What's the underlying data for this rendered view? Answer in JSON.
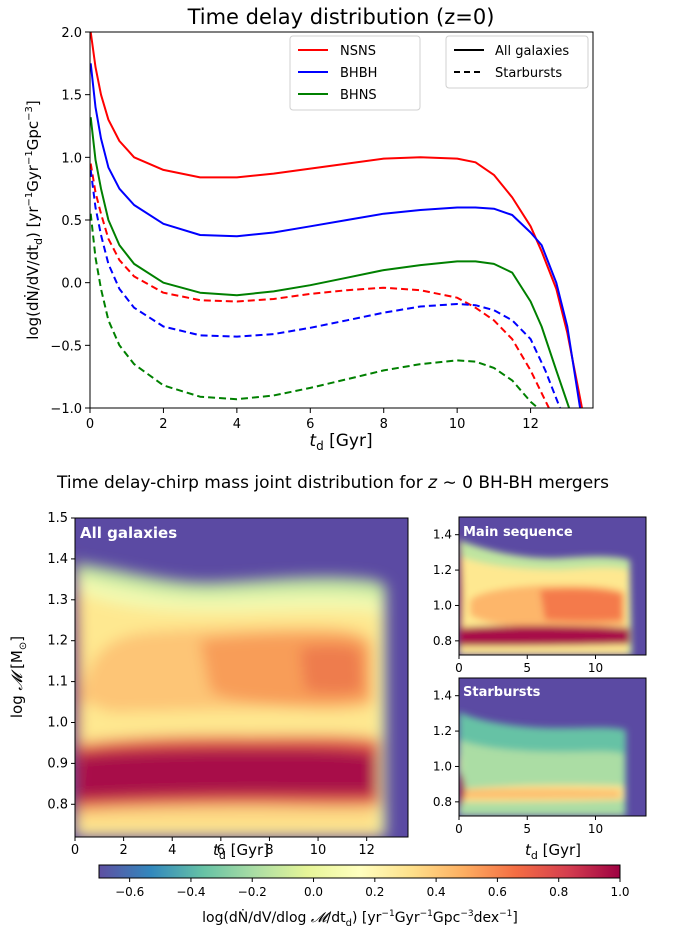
{
  "chart_data": [
    {
      "type": "line",
      "title": "Time delay distribution (z=0)",
      "xlabel": "t_d [Gyr]",
      "ylabel": "log(dṄ/dV/dt_d) [yr⁻¹Gyr⁻¹Gpc⁻³]",
      "xlim": [
        0,
        13.7
      ],
      "ylim": [
        -1.0,
        2.0
      ],
      "xticks": [
        0,
        2,
        4,
        6,
        8,
        10,
        12
      ],
      "yticks": [
        -1.0,
        -0.5,
        0.0,
        0.5,
        1.0,
        1.5,
        2.0
      ],
      "grid": false,
      "legend": {
        "placement": "top-right",
        "colors": [
          "NSNS",
          "BHBH",
          "BHNS"
        ],
        "linestyles": [
          "All galaxies",
          "Starbursts"
        ]
      },
      "series": [
        {
          "name": "NSNS",
          "linestyle": "All galaxies",
          "color": "#ff0000",
          "x": [
            0.02,
            0.15,
            0.3,
            0.5,
            0.8,
            1.2,
            2.0,
            3.0,
            4.0,
            5.0,
            6.0,
            7.0,
            8.0,
            9.0,
            10.0,
            10.5,
            11.0,
            11.5,
            12.0,
            12.3,
            12.7,
            13.0,
            13.4
          ],
          "y": [
            2.0,
            1.72,
            1.5,
            1.3,
            1.13,
            1.0,
            0.9,
            0.84,
            0.84,
            0.87,
            0.91,
            0.95,
            0.99,
            1.0,
            0.99,
            0.96,
            0.86,
            0.68,
            0.45,
            0.25,
            -0.05,
            -0.4,
            -1.0
          ]
        },
        {
          "name": "BHBH",
          "linestyle": "All galaxies",
          "color": "#0000ff",
          "x": [
            0.02,
            0.15,
            0.3,
            0.5,
            0.8,
            1.2,
            2.0,
            3.0,
            4.0,
            5.0,
            6.0,
            7.0,
            8.0,
            9.0,
            10.0,
            10.5,
            11.0,
            11.5,
            12.0,
            12.3,
            12.7,
            13.0,
            13.35
          ],
          "y": [
            1.75,
            1.4,
            1.15,
            0.92,
            0.75,
            0.62,
            0.47,
            0.38,
            0.37,
            0.4,
            0.45,
            0.5,
            0.55,
            0.58,
            0.6,
            0.6,
            0.59,
            0.54,
            0.4,
            0.3,
            0.0,
            -0.35,
            -1.0
          ]
        },
        {
          "name": "BHNS",
          "linestyle": "All galaxies",
          "color": "#008000",
          "x": [
            0.02,
            0.15,
            0.3,
            0.5,
            0.8,
            1.2,
            2.0,
            3.0,
            4.0,
            5.0,
            6.0,
            7.0,
            8.0,
            9.0,
            10.0,
            10.5,
            11.0,
            11.5,
            12.0,
            12.3,
            12.7,
            13.05
          ],
          "y": [
            1.32,
            0.98,
            0.75,
            0.5,
            0.3,
            0.15,
            0.0,
            -0.08,
            -0.1,
            -0.07,
            -0.02,
            0.04,
            0.1,
            0.14,
            0.17,
            0.17,
            0.15,
            0.08,
            -0.15,
            -0.35,
            -0.7,
            -1.0
          ]
        },
        {
          "name": "NSNS",
          "linestyle": "Starbursts",
          "color": "#ff0000",
          "x": [
            0.02,
            0.15,
            0.3,
            0.5,
            0.8,
            1.2,
            2.0,
            3.0,
            4.0,
            5.0,
            6.0,
            7.0,
            8.0,
            9.0,
            10.0,
            10.5,
            11.0,
            11.5,
            12.0,
            12.5
          ],
          "y": [
            0.95,
            0.72,
            0.55,
            0.35,
            0.18,
            0.05,
            -0.08,
            -0.14,
            -0.15,
            -0.13,
            -0.09,
            -0.06,
            -0.04,
            -0.06,
            -0.12,
            -0.2,
            -0.3,
            -0.45,
            -0.7,
            -1.0
          ]
        },
        {
          "name": "BHBH",
          "linestyle": "Starbursts",
          "color": "#0000ff",
          "x": [
            0.02,
            0.15,
            0.3,
            0.5,
            0.8,
            1.2,
            2.0,
            3.0,
            4.0,
            5.0,
            6.0,
            7.0,
            8.0,
            9.0,
            10.0,
            10.5,
            11.0,
            11.5,
            12.0,
            12.4,
            12.8
          ],
          "y": [
            0.9,
            0.6,
            0.38,
            0.15,
            -0.05,
            -0.2,
            -0.35,
            -0.42,
            -0.43,
            -0.41,
            -0.36,
            -0.3,
            -0.24,
            -0.19,
            -0.17,
            -0.18,
            -0.22,
            -0.3,
            -0.45,
            -0.7,
            -1.0
          ]
        },
        {
          "name": "BHNS",
          "linestyle": "Starbursts",
          "color": "#008000",
          "x": [
            0.02,
            0.15,
            0.3,
            0.5,
            0.8,
            1.2,
            2.0,
            3.0,
            4.0,
            5.0,
            6.0,
            7.0,
            8.0,
            9.0,
            10.0,
            10.5,
            11.0,
            11.5,
            12.0,
            12.2
          ],
          "y": [
            0.55,
            0.2,
            -0.05,
            -0.3,
            -0.5,
            -0.65,
            -0.82,
            -0.91,
            -0.93,
            -0.9,
            -0.84,
            -0.77,
            -0.7,
            -0.65,
            -0.62,
            -0.63,
            -0.68,
            -0.78,
            -0.95,
            -1.0
          ]
        }
      ]
    },
    {
      "type": "heatmap",
      "title": "All galaxies",
      "xlabel": "t_d [Gyr]",
      "ylabel": "log 𝓜 [M⊙]",
      "xlim": [
        0,
        13.7
      ],
      "ylim": [
        0.72,
        1.5
      ],
      "xticks": [
        0,
        2,
        4,
        6,
        8,
        10,
        12
      ],
      "yticks": [
        0.8,
        0.9,
        1.0,
        1.1,
        1.2,
        1.3,
        1.4,
        1.5
      ],
      "zlim": [
        -0.7,
        1.0
      ],
      "color_range": "below -0.7 shown as #5b4aa3; 1.0 shown as #9e0142"
    },
    {
      "type": "heatmap",
      "title": "Main sequence",
      "xlim": [
        0,
        13.7
      ],
      "ylim": [
        0.72,
        1.5
      ],
      "xticks": [
        0,
        5,
        10
      ],
      "yticks": [
        0.8,
        1.0,
        1.2,
        1.4
      ],
      "zlim": [
        -0.7,
        1.0
      ]
    },
    {
      "type": "heatmap",
      "title": "Starbursts",
      "xlabel": "t_d [Gyr]",
      "xlim": [
        0,
        13.7
      ],
      "ylim": [
        0.72,
        1.5
      ],
      "xticks": [
        0,
        5,
        10
      ],
      "yticks": [
        0.8,
        1.0,
        1.2,
        1.4
      ],
      "zlim": [
        -0.7,
        1.0
      ]
    }
  ],
  "joint_title": "Time delay-chirp mass joint distribution for z ∼ 0 BH-BH mergers",
  "colorbar": {
    "ticks": [
      -0.6,
      -0.4,
      -0.2,
      0.0,
      0.2,
      0.4,
      0.6,
      0.8,
      1.0
    ],
    "tick_labels": [
      "−0.6",
      "−0.4",
      "−0.2",
      "0.0",
      "0.2",
      "0.4",
      "0.6",
      "0.8",
      "1.0"
    ],
    "label": "log(dṄ/dV/dlog𝓜/dt_d) [yr⁻¹Gyr⁻¹Gpc⁻³dex⁻¹]",
    "range": [
      -0.7,
      1.0
    ]
  }
}
